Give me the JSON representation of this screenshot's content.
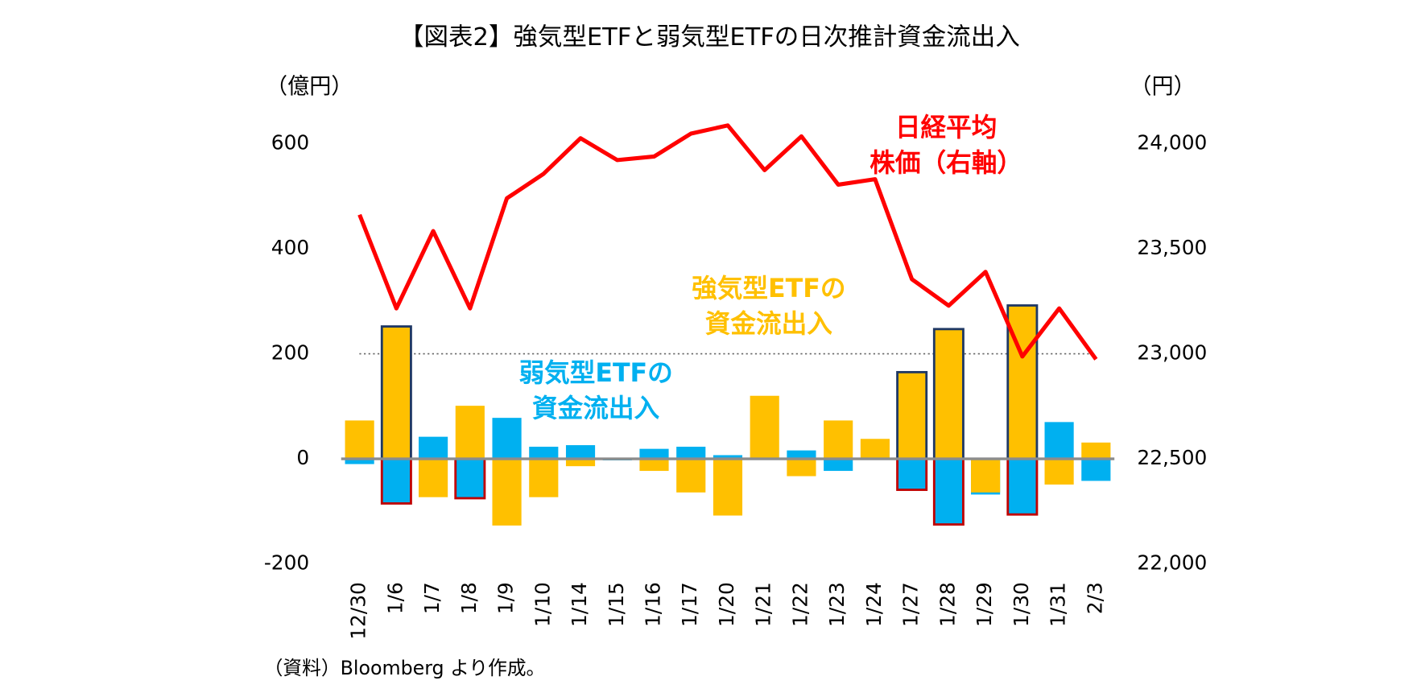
{
  "chart_data": {
    "type": "bar_line",
    "title": "【図表2】強気型ETFと弱気型ETFの日次推計資金流出入",
    "ylabel": "（億円）",
    "y2label": "（円）",
    "source": "（資料）Bloomberg より作成。",
    "categories": [
      "12/30",
      "1/6",
      "1/7",
      "1/8",
      "1/9",
      "1/10",
      "1/14",
      "1/15",
      "1/16",
      "1/17",
      "1/20",
      "1/21",
      "1/22",
      "1/23",
      "1/24",
      "1/27",
      "1/28",
      "1/29",
      "1/30",
      "1/31",
      "2/3"
    ],
    "ylim": [
      -200,
      600
    ],
    "yticks": [
      -200,
      0,
      200,
      400,
      600
    ],
    "y2lim": [
      22000,
      24000
    ],
    "y2ticks": [
      {
        "value": 22000,
        "label": "22,000"
      },
      {
        "value": 22500,
        "label": "22,500"
      },
      {
        "value": 23000,
        "label": "23,000"
      },
      {
        "value": 23500,
        "label": "23,500"
      },
      {
        "value": 24000,
        "label": "24,000"
      }
    ],
    "hline": 200,
    "series": [
      {
        "name": "弱気型ETFの\n資金流出入",
        "color": "#00b0f0",
        "kind": "bar",
        "outline": {
          "color": "#c00000",
          "indices": [
            1,
            3,
            15,
            16,
            18
          ]
        },
        "values": [
          -10,
          -85,
          42,
          -75,
          78,
          23,
          26,
          -3,
          19,
          23,
          7,
          0,
          16,
          -23,
          0,
          -59,
          -125,
          -68,
          -106,
          70,
          -42
        ]
      },
      {
        "name": "強気型ETFの\n資金流出入",
        "color": "#ffc000",
        "kind": "bar",
        "outline": {
          "color": "#1f3864",
          "indices": [
            1,
            15,
            16,
            18
          ]
        },
        "values": [
          73,
          252,
          -73,
          101,
          -127,
          -73,
          -14,
          -2,
          -23,
          -64,
          -108,
          120,
          -33,
          73,
          38,
          165,
          247,
          -64,
          292,
          -49,
          31
        ]
      },
      {
        "name": "日経平均\n株価（右軸）",
        "color": "#ff0000",
        "kind": "line",
        "axis": "y2",
        "values": [
          23662,
          23216,
          23584,
          23216,
          23740,
          23857,
          24026,
          23922,
          23939,
          24048,
          24087,
          23874,
          24035,
          23805,
          23831,
          23355,
          23229,
          23390,
          22987,
          23216,
          22974
        ]
      }
    ]
  }
}
